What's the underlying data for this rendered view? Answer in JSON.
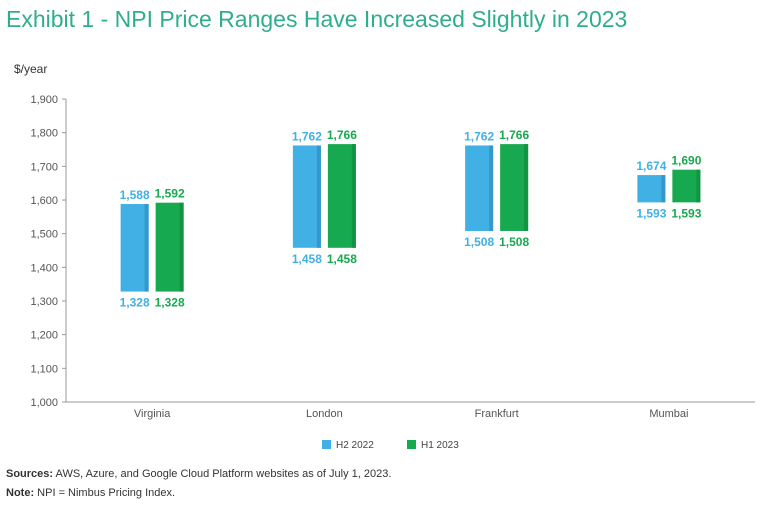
{
  "chart_data": {
    "type": "floating-bar",
    "title": "Exhibit 1 - NPI Price Ranges Have Increased Slightly in 2023",
    "ylabel": "$/year",
    "ylim": [
      1000,
      1900
    ],
    "yticks": [
      "1,000",
      "1,100",
      "1,200",
      "1,300",
      "1,400",
      "1,500",
      "1,600",
      "1,700",
      "1,800",
      "1,900"
    ],
    "ytick_values": [
      1000,
      1100,
      1200,
      1300,
      1400,
      1500,
      1600,
      1700,
      1800,
      1900
    ],
    "categories": [
      "Virginia",
      "London",
      "Frankfurt",
      "Mumbai"
    ],
    "series": [
      {
        "name": "H2 2022",
        "color": "#41b0e4",
        "shade": "#3498cc",
        "low": [
          1328,
          1458,
          1508,
          1593
        ],
        "high": [
          1588,
          1762,
          1762,
          1674
        ],
        "low_labels": [
          "1,328",
          "1,458",
          "1,508",
          "1,593"
        ],
        "high_labels": [
          "1,588",
          "1,762",
          "1,762",
          "1,674"
        ]
      },
      {
        "name": "H1 2023",
        "color": "#17a94f",
        "shade": "#129443",
        "low": [
          1328,
          1458,
          1508,
          1593
        ],
        "high": [
          1592,
          1766,
          1766,
          1690
        ],
        "low_labels": [
          "1,328",
          "1,458",
          "1,508",
          "1,593"
        ],
        "high_labels": [
          "1,592",
          "1,766",
          "1,766",
          "1,690"
        ]
      }
    ],
    "legend_position": "bottom-center"
  },
  "footer": {
    "sources_label": "Sources:",
    "sources_text": "AWS, Azure, and Google Cloud Platform websites as of July 1, 2023.",
    "note_label": "Note:",
    "note_text": "NPI = Nimbus Pricing Index."
  }
}
